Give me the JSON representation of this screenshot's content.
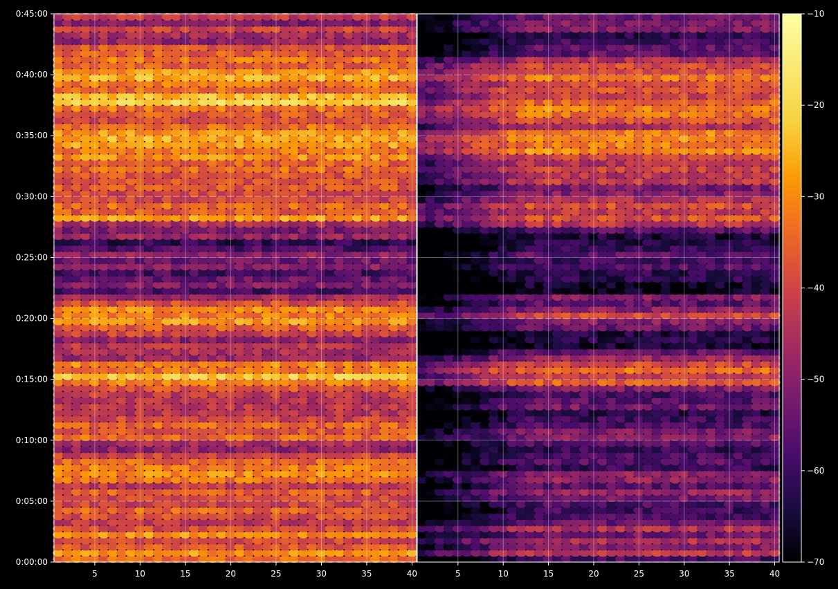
{
  "chart_data": {
    "type": "heatmap",
    "title": "",
    "xlabel": "",
    "ylabel": "",
    "panels": [
      {
        "x_range": [
          1,
          40
        ],
        "x_ticks": [
          5,
          10,
          15,
          20,
          25,
          30,
          35,
          40
        ],
        "x_tick_labels": [
          "5",
          "10",
          "15",
          "20",
          "25",
          "30",
          "35",
          "40"
        ]
      },
      {
        "x_range": [
          1,
          40
        ],
        "x_ticks": [
          5,
          10,
          15,
          20,
          25,
          30,
          35,
          40
        ],
        "x_tick_labels": [
          "5",
          "10",
          "15",
          "20",
          "25",
          "30",
          "35",
          "40"
        ]
      }
    ],
    "y_axis": {
      "range_seconds": [
        0,
        2700
      ],
      "ticks_seconds": [
        0,
        300,
        600,
        900,
        1200,
        1500,
        1800,
        2100,
        2400,
        2700
      ],
      "tick_labels": [
        "0:00:00",
        "0:05:00",
        "0:10:00",
        "0:15:00",
        "0:20:00",
        "0:25:00",
        "0:30:00",
        "0:35:00",
        "0:40:00",
        "0:45:00"
      ]
    },
    "colorbar": {
      "colormap": "inferno",
      "range": [
        -70,
        -10
      ],
      "ticks": [
        -70,
        -60,
        -50,
        -40,
        -30,
        -20,
        -10
      ],
      "tick_labels": [
        "−70",
        "−60",
        "−50",
        "−40",
        "−30",
        "−20",
        "−10"
      ]
    },
    "grid": true,
    "intensity_profile": {
      "times_seconds": [
        0,
        60,
        120,
        180,
        240,
        300,
        360,
        420,
        480,
        540,
        600,
        660,
        720,
        780,
        840,
        900,
        960,
        1020,
        1080,
        1140,
        1200,
        1260,
        1320,
        1380,
        1440,
        1500,
        1560,
        1620,
        1680,
        1740,
        1800,
        1860,
        1920,
        1980,
        2040,
        2100,
        2160,
        2220,
        2280,
        2340,
        2400,
        2460,
        2520,
        2580,
        2640,
        2700
      ],
      "left_panel_dB": [
        -38,
        -33,
        -32,
        -38,
        -40,
        -36,
        -42,
        -36,
        -38,
        -45,
        -38,
        -33,
        -45,
        -48,
        -42,
        -25,
        -30,
        -45,
        -48,
        -45,
        -32,
        -38,
        -52,
        -52,
        -55,
        -55,
        -58,
        -52,
        -35,
        -30,
        -42,
        -38,
        -30,
        -32,
        -28,
        -25,
        -40,
        -26,
        -28,
        -32,
        -25,
        -32,
        -42,
        -45,
        -48,
        -50
      ],
      "right_panel_dB": [
        -55,
        -45,
        -48,
        -52,
        -55,
        -50,
        -52,
        -50,
        -55,
        -58,
        -55,
        -50,
        -55,
        -60,
        -55,
        -35,
        -42,
        -58,
        -62,
        -58,
        -40,
        -48,
        -60,
        -62,
        -62,
        -62,
        -62,
        -60,
        -42,
        -36,
        -50,
        -45,
        -36,
        -38,
        -32,
        -30,
        -48,
        -30,
        -32,
        -38,
        -32,
        -40,
        -52,
        -55,
        -55,
        -58
      ]
    }
  }
}
